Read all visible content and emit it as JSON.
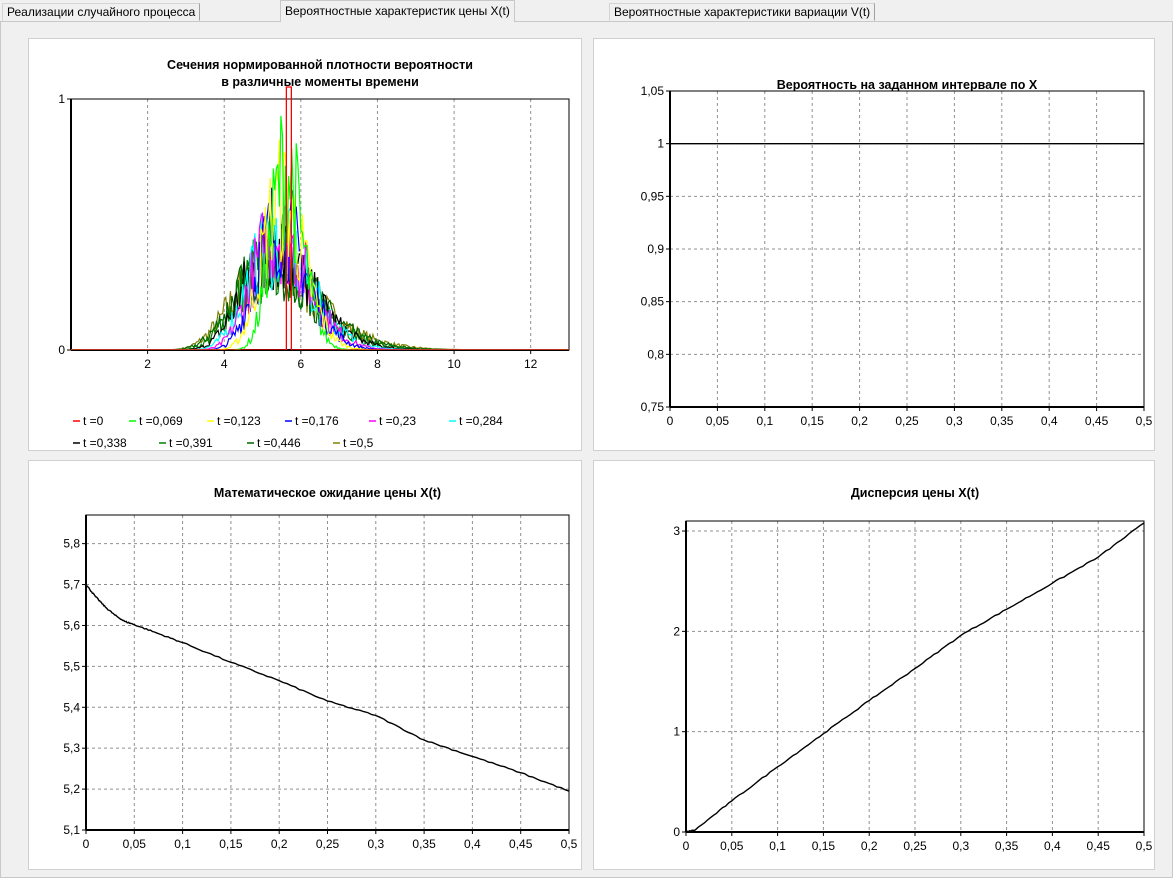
{
  "tabs": [
    {
      "label": "Реализации случайного процесса",
      "active": false
    },
    {
      "label": "Вероятностные характеристик цены X(t)",
      "active": true
    },
    {
      "label": "Вероятностные характеристики вариации V(t)",
      "active": false
    }
  ],
  "chart_data": [
    {
      "type": "line",
      "title": "Сечения нормированной плотности вероятности\nв различные моменты времени",
      "xlim": [
        0,
        13
      ],
      "ylim": [
        0,
        1
      ],
      "x_ticks": [
        "2",
        "4",
        "6",
        "8",
        "10",
        "12"
      ],
      "y_ticks": [
        "0",
        "1"
      ],
      "grid": true,
      "legend_placement": "bottom",
      "series": [
        {
          "name": "t =0",
          "color": "#ff0000",
          "spike_at": 5.7,
          "peak": 1.0,
          "sigma": 0.0
        },
        {
          "name": "t =0,069",
          "color": "#00ff00",
          "center": 5.6,
          "peak": 0.72,
          "sigma": 0.42
        },
        {
          "name": "t =0,123",
          "color": "#ffff00",
          "center": 5.5,
          "peak": 0.6,
          "sigma": 0.55
        },
        {
          "name": "t =0,176",
          "color": "#0000ff",
          "center": 5.45,
          "peak": 0.5,
          "sigma": 0.65
        },
        {
          "name": "t =0,23",
          "color": "#ff00ff",
          "center": 5.4,
          "peak": 0.47,
          "sigma": 0.72
        },
        {
          "name": "t =0,284",
          "color": "#00ffff",
          "center": 5.35,
          "peak": 0.43,
          "sigma": 0.8
        },
        {
          "name": "t =0,338",
          "color": "#000000",
          "center": 5.3,
          "peak": 0.4,
          "sigma": 0.88
        },
        {
          "name": "t =0,391",
          "color": "#008000",
          "center": 5.25,
          "peak": 0.37,
          "sigma": 0.95
        },
        {
          "name": "t =0,446",
          "color": "#006400",
          "center": 5.2,
          "peak": 0.34,
          "sigma": 1.02
        },
        {
          "name": "t =0,5",
          "color": "#808000",
          "center": 5.2,
          "peak": 0.32,
          "sigma": 1.08
        }
      ]
    },
    {
      "type": "line",
      "title": "Вероятность на заданном интервале по X",
      "xlim": [
        0,
        0.5
      ],
      "ylim": [
        0.75,
        1.05
      ],
      "x_ticks": [
        "0",
        "0,05",
        "0,1",
        "0,15",
        "0,2",
        "0,25",
        "0,3",
        "0,35",
        "0,4",
        "0,45",
        "0,5"
      ],
      "y_ticks": [
        "0,75",
        "0,8",
        "0,85",
        "0,9",
        "0,95",
        "1",
        "1,05"
      ],
      "grid": true,
      "series": [
        {
          "x": [
            0,
            0.5
          ],
          "y": [
            1,
            1
          ]
        }
      ]
    },
    {
      "type": "line",
      "title": "Математическое ожидание цены X(t)",
      "xlim": [
        0,
        0.5
      ],
      "ylim": [
        5.1,
        5.87
      ],
      "x_ticks": [
        "0",
        "0,05",
        "0,1",
        "0,15",
        "0,2",
        "0,25",
        "0,3",
        "0,35",
        "0,4",
        "0,45",
        "0,5"
      ],
      "y_ticks": [
        "5,1",
        "5,2",
        "5,3",
        "5,4",
        "5,5",
        "5,6",
        "5,7",
        "5,8"
      ],
      "grid": true,
      "series": [
        {
          "x": [
            0,
            0.01,
            0.02,
            0.03,
            0.04,
            0.05,
            0.075,
            0.1,
            0.15,
            0.2,
            0.25,
            0.3,
            0.35,
            0.4,
            0.45,
            0.5
          ],
          "y": [
            5.7,
            5.67,
            5.645,
            5.625,
            5.61,
            5.602,
            5.58,
            5.558,
            5.51,
            5.465,
            5.415,
            5.38,
            5.32,
            5.28,
            5.24,
            5.195
          ]
        }
      ]
    },
    {
      "type": "line",
      "title": "Дисперсия цены X(t)",
      "xlim": [
        0,
        0.5
      ],
      "ylim": [
        0,
        3.1
      ],
      "x_ticks": [
        "0",
        "0,05",
        "0,1",
        "0,15",
        "0,2",
        "0,25",
        "0,3",
        "0,35",
        "0,4",
        "0,45",
        "0,5"
      ],
      "y_ticks": [
        "0",
        "1",
        "2",
        "3"
      ],
      "grid": true,
      "series": [
        {
          "x": [
            0,
            0.01,
            0.05,
            0.1,
            0.15,
            0.2,
            0.25,
            0.3,
            0.35,
            0.4,
            0.45,
            0.5
          ],
          "y": [
            0,
            0.02,
            0.31,
            0.65,
            0.98,
            1.31,
            1.63,
            1.96,
            2.22,
            2.48,
            2.74,
            3.08
          ]
        }
      ]
    }
  ]
}
